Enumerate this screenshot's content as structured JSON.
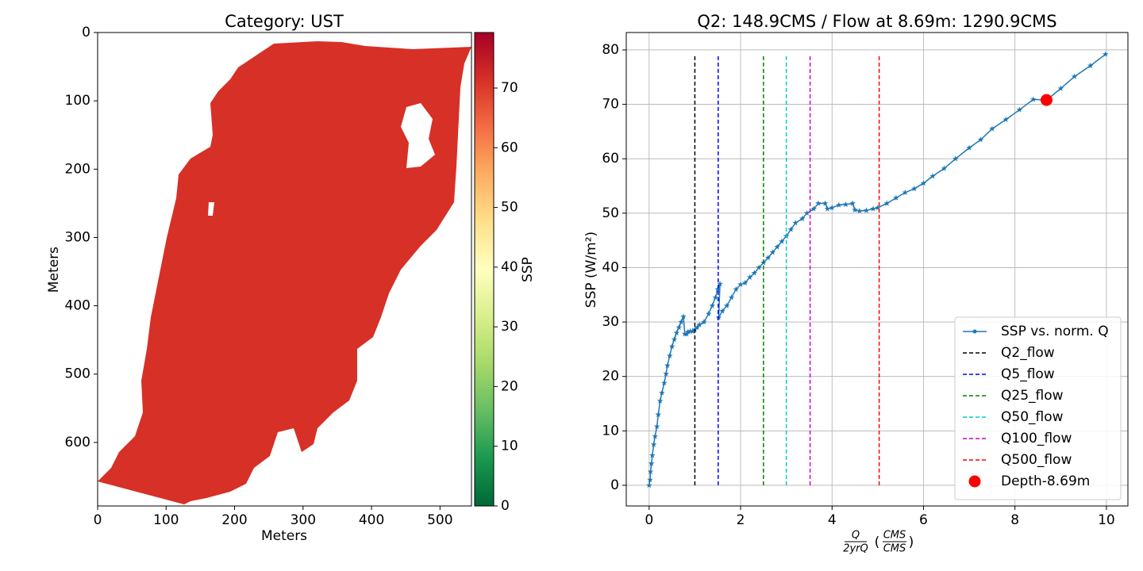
{
  "chart_data": [
    {
      "type": "image",
      "title": "Category: UST",
      "xlabel": "Meters",
      "ylabel": "Meters",
      "xlim": [
        0,
        546
      ],
      "ylim": [
        693,
        0
      ],
      "xticks": [
        0,
        100,
        200,
        300,
        400,
        500
      ],
      "yticks": [
        0,
        100,
        200,
        300,
        400,
        500,
        600
      ],
      "color": "#d73027",
      "colorbar": {
        "label": "SSP",
        "lim": [
          0,
          79.3
        ],
        "ticks": [
          0,
          10,
          20,
          30,
          40,
          50,
          60,
          70
        ],
        "colors": [
          "#006837",
          "#1a9850",
          "#66bd63",
          "#a6d96a",
          "#d9ef8b",
          "#ffffbf",
          "#fee08b",
          "#fdae61",
          "#f46d43",
          "#d73027",
          "#a50026"
        ]
      }
    },
    {
      "type": "line",
      "title": "Q2: 148.9CMS / Flow at 8.69m: 1290.9CMS",
      "xlabel": {
        "numerator": "Q",
        "denominator": "2yrQ",
        "unit_numerator": "CMS",
        "unit_denominator": "CMS"
      },
      "ylabel": "SSP (W/m²)",
      "xlim": [
        -0.5,
        10.47
      ],
      "ylim": [
        -3.8,
        83.2
      ],
      "xticks": [
        0,
        2,
        4,
        6,
        8,
        10
      ],
      "yticks": [
        0,
        10,
        20,
        30,
        40,
        50,
        60,
        70,
        80
      ],
      "grid": true,
      "legend": "lower right",
      "series": [
        {
          "name": "SSP vs. norm. Q",
          "color": "#1f77b4",
          "linestyle": "solid",
          "marker": "star",
          "x": [
            0,
            0.02,
            0.03,
            0.05,
            0.07,
            0.1,
            0.13,
            0.17,
            0.2,
            0.24,
            0.28,
            0.33,
            0.37,
            0.4,
            0.45,
            0.5,
            0.55,
            0.6,
            0.65,
            0.7,
            0.75,
            0.78,
            0.82,
            0.85,
            0.9,
            0.95,
            1.0,
            1.05,
            1.1,
            1.2,
            1.3,
            1.38,
            1.45,
            1.5,
            1.55,
            1.52,
            1.6,
            1.7,
            1.8,
            1.9,
            2.0,
            2.1,
            2.2,
            2.3,
            2.4,
            2.5,
            2.6,
            2.7,
            2.8,
            2.9,
            3.0,
            3.1,
            3.2,
            3.35,
            3.45,
            3.6,
            3.7,
            3.85,
            3.9,
            4.0,
            4.15,
            4.3,
            4.45,
            4.5,
            4.6,
            4.75,
            4.9,
            5.0,
            5.2,
            5.4,
            5.6,
            5.8,
            6.0,
            6.2,
            6.45,
            6.7,
            7.0,
            7.25,
            7.5,
            7.8,
            8.1,
            8.4,
            8.69,
            9.0,
            9.3,
            9.65,
            9.98
          ],
          "values": [
            0,
            1,
            2.5,
            4,
            5.5,
            7.5,
            9,
            10.8,
            13,
            15.5,
            17,
            18.8,
            20.5,
            22,
            23.8,
            25.5,
            26.8,
            28,
            29,
            30,
            31,
            27.8,
            27.8,
            28.2,
            28.3,
            28.3,
            28.6,
            29,
            29.5,
            30,
            31.5,
            33,
            34.5,
            36,
            37,
            30.8,
            32,
            33,
            34.5,
            36,
            36.9,
            37.2,
            38.2,
            39,
            40,
            40.9,
            41.8,
            42.8,
            43.8,
            44.8,
            45.8,
            47,
            48.2,
            49,
            50,
            50.8,
            51.8,
            51.8,
            50.8,
            51,
            51.5,
            51.6,
            51.8,
            50.6,
            50.4,
            50.5,
            50.8,
            51,
            51.8,
            52.8,
            53.8,
            54.5,
            55.5,
            56.8,
            58.2,
            60,
            62,
            63.5,
            65.5,
            67.2,
            69,
            70.9,
            70.8,
            72.9,
            75.1,
            77.1,
            79.2
          ]
        },
        {
          "name": "Q2_flow",
          "color": "#000000",
          "linestyle": "dashed",
          "x": [
            1.0,
            1.0
          ],
          "values": [
            0,
            79.2
          ]
        },
        {
          "name": "Q5_flow",
          "color": "#0000ff",
          "linestyle": "dashed",
          "x": [
            1.51,
            1.51
          ],
          "values": [
            0,
            79.2
          ]
        },
        {
          "name": "Q25_flow",
          "color": "#008000",
          "linestyle": "dashed",
          "x": [
            2.5,
            2.5
          ],
          "values": [
            0,
            79.2
          ]
        },
        {
          "name": "Q50_flow",
          "color": "#00cccc",
          "linestyle": "dashed",
          "x": [
            3.0,
            3.0
          ],
          "values": [
            0,
            79.2
          ]
        },
        {
          "name": "Q100_flow",
          "color": "#cc00cc",
          "linestyle": "dashed",
          "x": [
            3.52,
            3.52
          ],
          "values": [
            0,
            79.2
          ]
        },
        {
          "name": "Q500_flow",
          "color": "#ff0000",
          "linestyle": "dashed",
          "x": [
            5.03,
            5.03
          ],
          "values": [
            0,
            79.2
          ]
        },
        {
          "name": "Depth-8.69m",
          "color": "#ff0000",
          "type": "scatter",
          "x": [
            8.69
          ],
          "values": [
            70.8
          ]
        }
      ]
    }
  ]
}
